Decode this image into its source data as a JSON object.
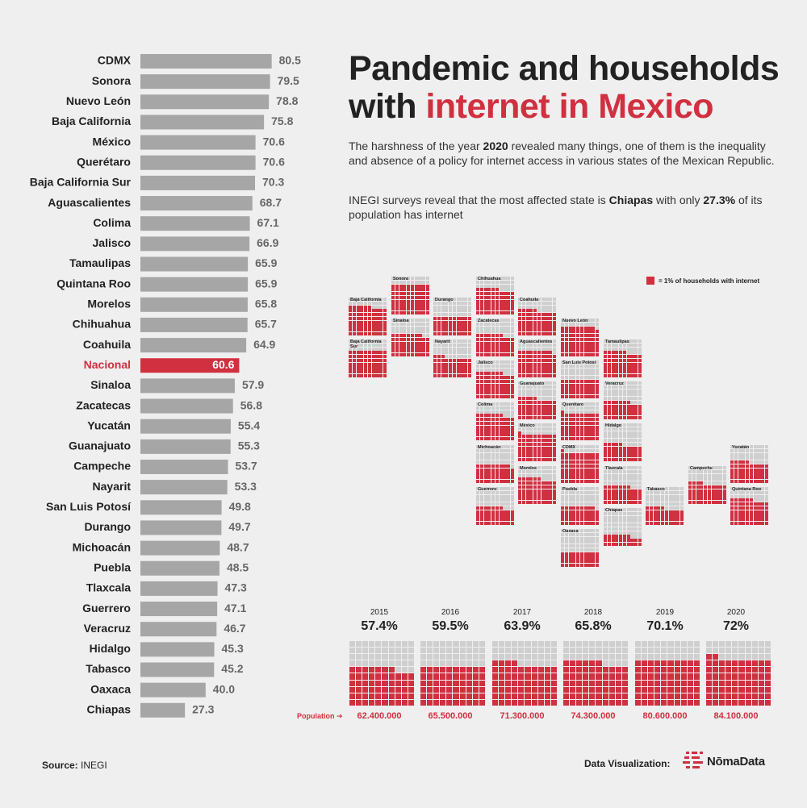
{
  "title": {
    "line1": "Pandemic and households",
    "line2_prefix": "with ",
    "line2_highlight": "internet in Mexico"
  },
  "description": {
    "p1_a": "The harshness of the year ",
    "p1_bold": "2020",
    "p1_b": " revealed many things, one of them is the inequality and absence of a policy for internet access in various states of the Mexican Republic.",
    "p2_a": "INEGI surveys reveal that the most affected state is ",
    "p2_bold": "Chiapas",
    "p2_b": " with only ",
    "p2_bold2": "27.3%",
    "p2_c": " of its population has internet"
  },
  "legend": {
    "label": "= 1% of households with internet"
  },
  "footer": {
    "source_label": "Source:",
    "source_value": "INEGI",
    "credit_label": "Data Visualization:",
    "brand": "NōmaData"
  },
  "colors": {
    "accent": "#d0303f",
    "bar": "#a6a6a6",
    "empty": "#cfcfcf",
    "background": "#efefef"
  },
  "chart_data": [
    {
      "type": "bar",
      "orientation": "horizontal",
      "categories": [
        "CDMX",
        "Sonora",
        "Nuevo León",
        "Baja California",
        "México",
        "Querétaro",
        "Baja California Sur",
        "Aguascalientes",
        "Colima",
        "Jalisco",
        "Tamaulipas",
        "Quintana Roo",
        "Morelos",
        "Chihuahua",
        "Coahuila",
        "Nacional",
        "Sinaloa",
        "Zacatecas",
        "Yucatán",
        "Guanajuato",
        "Campeche",
        "Nayarit",
        "San Luis Potosí",
        "Durango",
        "Michoacán",
        "Puebla",
        "Tlaxcala",
        "Guerrero",
        "Veracruz",
        "Hidalgo",
        "Tabasco",
        "Oaxaca",
        "Chiapas"
      ],
      "values": [
        80.5,
        79.5,
        78.8,
        75.8,
        70.6,
        70.6,
        70.3,
        68.7,
        67.1,
        66.9,
        65.9,
        65.9,
        65.8,
        65.7,
        64.9,
        60.6,
        57.9,
        56.8,
        55.4,
        55.3,
        53.7,
        53.3,
        49.8,
        49.7,
        48.7,
        48.5,
        47.3,
        47.1,
        46.7,
        45.3,
        45.2,
        40.0,
        27.3
      ],
      "value_labels": [
        "80.5",
        "79.5",
        "78.8",
        "75.8",
        "70.6",
        "70.6",
        "70.3",
        "68.7",
        "67.1",
        "66.9",
        "65.9",
        "65.9",
        "65.8",
        "65.7",
        "64.9",
        "60.6",
        "57.9",
        "56.8",
        "55.4",
        "55.3",
        "53.7",
        "53.3",
        "49.8",
        "49.7",
        "48.7",
        "48.5",
        "47.3",
        "47.1",
        "46.7",
        "45.3",
        "45.2",
        "40.0",
        "27.3"
      ],
      "highlight": "Nacional"
    },
    {
      "type": "waffle-tile-map",
      "states": [
        {
          "name": "Baja California",
          "value": 75.8
        },
        {
          "name": "Baja California Sur",
          "value": 70.3
        },
        {
          "name": "Sonora",
          "value": 79.5
        },
        {
          "name": "Sinaloa",
          "value": 57.9
        },
        {
          "name": "Durango",
          "value": 49.7
        },
        {
          "name": "Nayarit",
          "value": 53.3
        },
        {
          "name": "Chihuahua",
          "value": 65.7
        },
        {
          "name": "Zacatecas",
          "value": 56.8
        },
        {
          "name": "Jalisco",
          "value": 66.9
        },
        {
          "name": "Colima",
          "value": 67.1
        },
        {
          "name": "Michoacán",
          "value": 48.7
        },
        {
          "name": "Guerrero",
          "value": 47.1
        },
        {
          "name": "Coahuila",
          "value": 64.9
        },
        {
          "name": "Aguascalientes",
          "value": 68.7
        },
        {
          "name": "Guanajuato",
          "value": 55.3
        },
        {
          "name": "México",
          "value": 70.6
        },
        {
          "name": "Morelos",
          "value": 65.8
        },
        {
          "name": "Nuevo León",
          "value": 78.8
        },
        {
          "name": "San Luis Potosí",
          "value": 49.8
        },
        {
          "name": "Querétaro",
          "value": 70.6
        },
        {
          "name": "CDMX",
          "value": 80.5
        },
        {
          "name": "Puebla",
          "value": 48.5
        },
        {
          "name": "Oaxaca",
          "value": 40.0
        },
        {
          "name": "Tamaulipas",
          "value": 65.9
        },
        {
          "name": "Veracruz",
          "value": 46.7
        },
        {
          "name": "Hidalgo",
          "value": 45.3
        },
        {
          "name": "Tlaxcala",
          "value": 47.3
        },
        {
          "name": "Chiapas",
          "value": 27.3
        },
        {
          "name": "Tabasco",
          "value": 45.2
        },
        {
          "name": "Campeche",
          "value": 53.7
        },
        {
          "name": "Yucatán",
          "value": 55.4
        },
        {
          "name": "Quintana Roo",
          "value": 65.9
        }
      ]
    },
    {
      "type": "waffle",
      "years": [
        "2015",
        "2016",
        "2017",
        "2018",
        "2019",
        "2020"
      ],
      "percent_labels": [
        "57.4%",
        "59.5%",
        "63.9%",
        "65.8%",
        "70.1%",
        "72%"
      ],
      "values": [
        57.4,
        59.5,
        63.9,
        65.8,
        70.1,
        72
      ],
      "population_label": "Population ➔",
      "population": [
        "62.400.000",
        "65.500.000",
        "71.300.000",
        "74.300.000",
        "80.600.000",
        "84.100.000"
      ]
    }
  ]
}
